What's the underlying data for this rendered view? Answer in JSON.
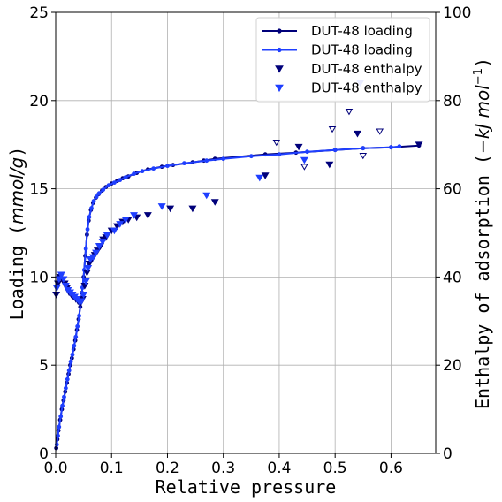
{
  "chart_data": {
    "type": "line",
    "xlabel": "Relative pressure",
    "ylabel_left_prefix": "Loading (",
    "ylabel_left_unit": "mmol/g",
    "ylabel_left_suffix": ")",
    "ylabel_right_prefix": "Enthalpy of adsorption (",
    "ylabel_right_unit": "−kJ mol",
    "ylabel_right_sup": "−1",
    "ylabel_right_suffix": ")",
    "xlim": [
      0,
      0.68
    ],
    "ylim_left": [
      0,
      25
    ],
    "ylim_right": [
      0,
      100
    ],
    "x_ticks": [
      "0.0",
      "0.1",
      "0.2",
      "0.3",
      "0.4",
      "0.5",
      "0.6"
    ],
    "y_left_ticks": [
      "0",
      "5",
      "10",
      "15",
      "20",
      "25"
    ],
    "y_right_ticks": [
      "0",
      "20",
      "40",
      "60",
      "80",
      "100"
    ],
    "grid": true,
    "legend_position": "top-right",
    "colors": {
      "dark_navy": "#00007a",
      "bright_blue": "#1f3fff"
    },
    "series": [
      {
        "name": "DUT-48 loading",
        "axis": "left",
        "style": "line-marker",
        "color": "#00007a",
        "x": [
          0.001,
          0.003,
          0.005,
          0.008,
          0.011,
          0.014,
          0.017,
          0.02,
          0.023,
          0.026,
          0.029,
          0.032,
          0.035,
          0.038,
          0.041,
          0.044,
          0.047,
          0.05,
          0.053,
          0.056,
          0.059,
          0.063,
          0.067,
          0.072,
          0.077,
          0.083,
          0.09,
          0.1,
          0.11,
          0.12,
          0.13,
          0.145,
          0.165,
          0.19,
          0.21,
          0.245,
          0.265,
          0.285,
          0.375,
          0.43,
          0.5,
          0.55,
          0.6,
          0.65
        ],
        "y": [
          0.3,
          0.8,
          1.3,
          1.9,
          2.5,
          3.0,
          3.5,
          4.0,
          4.5,
          5.0,
          5.4,
          5.9,
          6.4,
          7.0,
          7.6,
          8.3,
          9.1,
          10.0,
          11.2,
          12.4,
          13.2,
          13.8,
          14.2,
          14.5,
          14.7,
          14.9,
          15.1,
          15.3,
          15.45,
          15.6,
          15.7,
          15.9,
          16.1,
          16.25,
          16.35,
          16.5,
          16.6,
          16.7,
          16.95,
          17.05,
          17.2,
          17.3,
          17.35,
          17.45
        ]
      },
      {
        "name": "DUT-48 loading",
        "axis": "left",
        "style": "line-marker",
        "color": "#1f3fff",
        "x": [
          0.002,
          0.004,
          0.006,
          0.009,
          0.012,
          0.015,
          0.018,
          0.021,
          0.024,
          0.027,
          0.03,
          0.033,
          0.036,
          0.039,
          0.042,
          0.045,
          0.048,
          0.051,
          0.054,
          0.057,
          0.06,
          0.064,
          0.068,
          0.073,
          0.078,
          0.085,
          0.095,
          0.105,
          0.115,
          0.125,
          0.14,
          0.155,
          0.175,
          0.2,
          0.23,
          0.27,
          0.3,
          0.35,
          0.4,
          0.45,
          0.5,
          0.55,
          0.6,
          0.615
        ],
        "y": [
          0.5,
          1.0,
          1.5,
          2.1,
          2.7,
          3.2,
          3.7,
          4.2,
          4.7,
          5.2,
          5.6,
          6.1,
          6.6,
          7.2,
          7.8,
          8.6,
          9.4,
          10.4,
          11.6,
          12.7,
          13.4,
          13.9,
          14.3,
          14.55,
          14.75,
          14.95,
          15.2,
          15.35,
          15.5,
          15.65,
          15.85,
          16.0,
          16.15,
          16.3,
          16.45,
          16.6,
          16.7,
          16.85,
          16.95,
          17.1,
          17.2,
          17.3,
          17.35,
          17.4
        ]
      },
      {
        "name": "DUT-48 enthalpy",
        "axis": "right",
        "style": "marker-down-filled",
        "color": "#00007a",
        "x": [
          0.001,
          0.004,
          0.008,
          0.012,
          0.016,
          0.02,
          0.024,
          0.028,
          0.032,
          0.036,
          0.04,
          0.044,
          0.048,
          0.052,
          0.056,
          0.06,
          0.065,
          0.07,
          0.075,
          0.08,
          0.085,
          0.09,
          0.1,
          0.11,
          0.12,
          0.13,
          0.145,
          0.165,
          0.205,
          0.245,
          0.285,
          0.375,
          0.435,
          0.49,
          0.54,
          0.65
        ],
        "y": [
          36.0,
          38.5,
          40.0,
          39.5,
          38.5,
          37.5,
          36.5,
          36.0,
          35.5,
          35.0,
          34.5,
          34.0,
          35.0,
          38.0,
          41.0,
          43.0,
          44.0,
          45.0,
          46.0,
          47.0,
          48.5,
          49.0,
          50.5,
          51.5,
          52.5,
          53.0,
          53.5,
          54.0,
          55.5,
          55.5,
          57.0,
          63.0,
          69.5,
          65.5,
          72.5,
          70.0
        ]
      },
      {
        "name": "DUT-48 enthalpy",
        "axis": "right",
        "style": "marker-down-filled",
        "color": "#1f3fff",
        "x": [
          0.002,
          0.006,
          0.01,
          0.014,
          0.018,
          0.022,
          0.026,
          0.03,
          0.034,
          0.038,
          0.042,
          0.046,
          0.05,
          0.054,
          0.058,
          0.062,
          0.067,
          0.072,
          0.078,
          0.084,
          0.092,
          0.105,
          0.115,
          0.125,
          0.14,
          0.19,
          0.27,
          0.365,
          0.445,
          0.545
        ],
        "y": [
          37.5,
          39.5,
          40.5,
          39.5,
          38.0,
          37.0,
          36.5,
          36.0,
          35.5,
          35.0,
          34.5,
          34.5,
          36.0,
          39.0,
          42.0,
          44.0,
          44.5,
          45.5,
          47.0,
          48.0,
          49.5,
          50.5,
          52.0,
          53.0,
          54.0,
          56.0,
          58.5,
          62.5,
          66.5,
          84.0
        ]
      },
      {
        "name": "",
        "axis": "right",
        "style": "marker-down-open",
        "color": "#00007a",
        "x": [
          0.395,
          0.445,
          0.495,
          0.525,
          0.55,
          0.58
        ],
        "y": [
          70.5,
          65.0,
          73.5,
          77.5,
          67.5,
          73.0
        ]
      }
    ],
    "legend": [
      {
        "label": "DUT-48 loading",
        "kind": "line",
        "color": "#00007a"
      },
      {
        "label": "DUT-48 loading",
        "kind": "line",
        "color": "#1f3fff"
      },
      {
        "label": "DUT-48 enthalpy",
        "kind": "marker",
        "color": "#00007a"
      },
      {
        "label": "DUT-48 enthalpy",
        "kind": "marker",
        "color": "#1f3fff"
      }
    ]
  }
}
